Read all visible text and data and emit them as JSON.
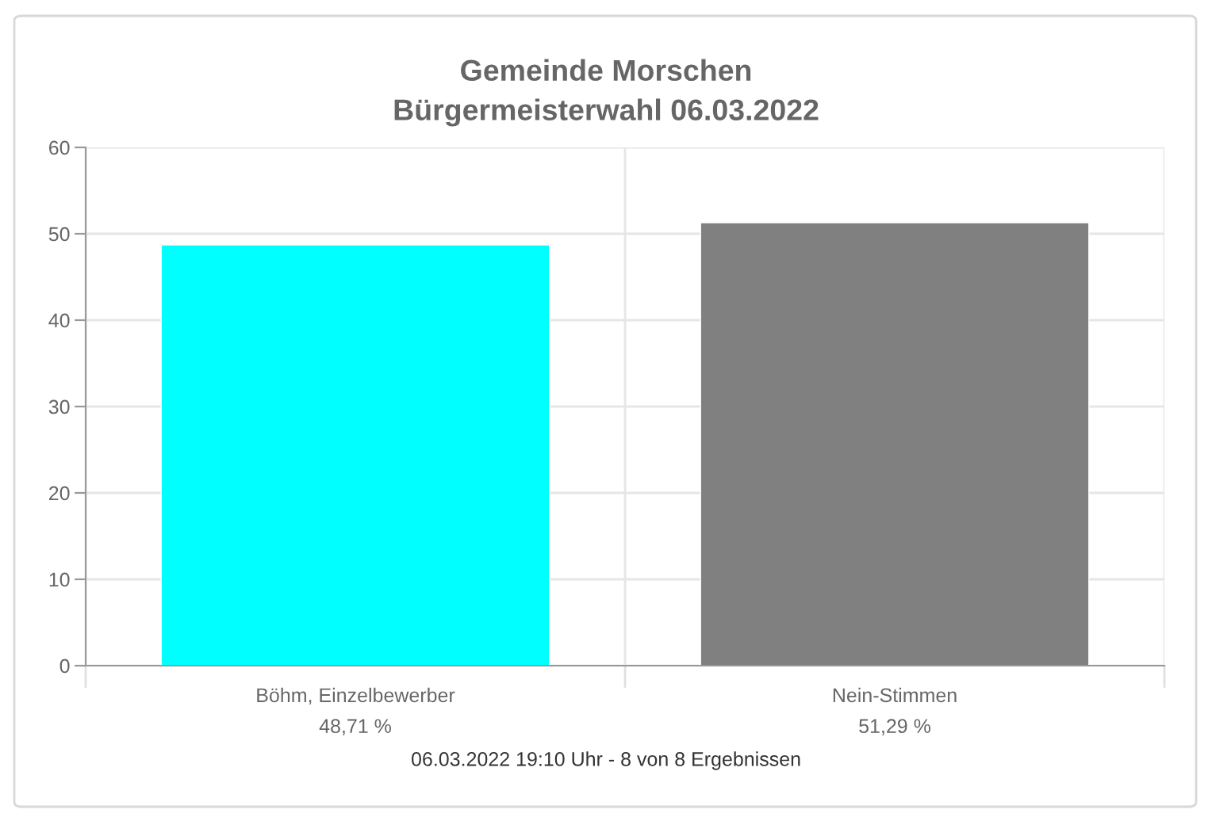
{
  "chart_data": {
    "type": "bar",
    "title": "Gemeinde Morschen",
    "subtitle": "Bürgermeisterwahl 06.03.2022",
    "categories": [
      "Böhm, Einzelbewerber",
      "Nein-Stimmen"
    ],
    "values": [
      48.71,
      51.29
    ],
    "colors": [
      "#00ffff",
      "#808080"
    ],
    "value_labels": [
      "48,71 %",
      "51,29 %"
    ],
    "ylim": [
      0,
      60
    ],
    "yticks": [
      0,
      10,
      20,
      30,
      40,
      50,
      60
    ],
    "grid": true,
    "legend": false,
    "annotations": [
      "06.03.2022 19:10 Uhr - 8 von 8 Ergebnissen"
    ]
  }
}
